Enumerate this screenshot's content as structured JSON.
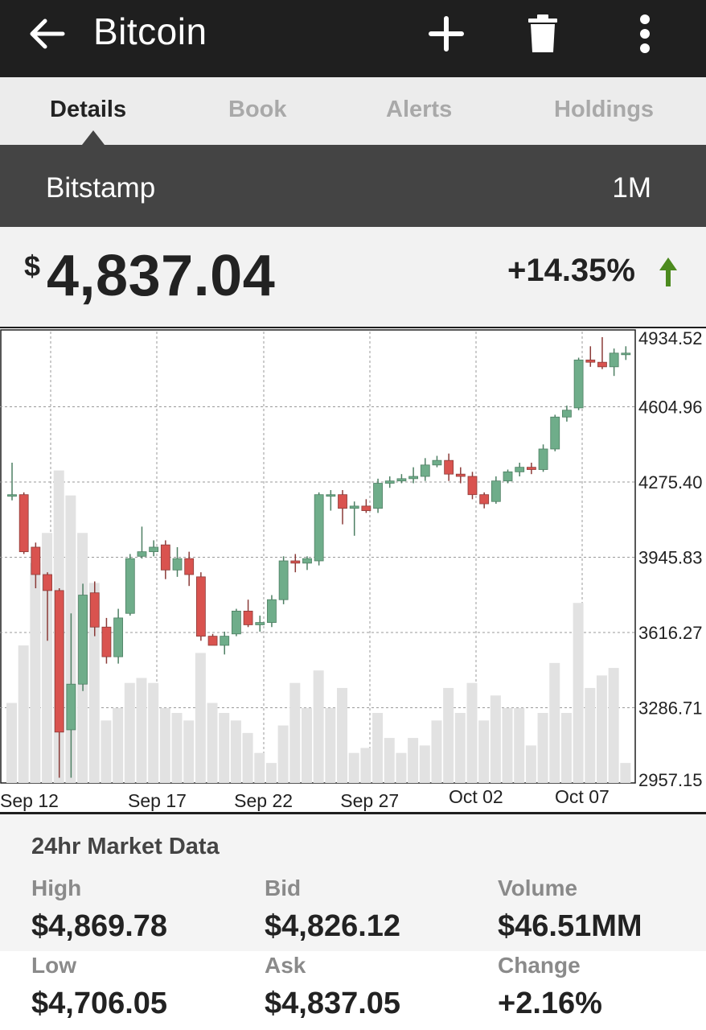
{
  "appbar": {
    "title": "Bitcoin",
    "icons": [
      "back-arrow-icon",
      "add-icon",
      "trash-icon",
      "more-vert-icon"
    ]
  },
  "tabs": [
    {
      "label": "Details",
      "active": true
    },
    {
      "label": "Book",
      "active": false
    },
    {
      "label": "Alerts",
      "active": false
    },
    {
      "label": "Holdings",
      "active": false
    }
  ],
  "exchange_bar": {
    "exchange": "Bitstamp",
    "range": "1M"
  },
  "price": {
    "currency_symbol": "$",
    "value": "4,837.04",
    "change": "+14.35%",
    "trend": "up",
    "trend_color": "#4c8a1e"
  },
  "chart_data": {
    "type": "candlestick",
    "y_axis_labels": [
      "4934.52",
      "4604.96",
      "4275.40",
      "3945.83",
      "3616.27",
      "3286.71",
      "2957.15"
    ],
    "ylim": [
      2957.15,
      4934.52
    ],
    "x_tick_labels": [
      "Sep 12",
      "Sep 17",
      "Sep 22",
      "Sep 27",
      "Oct 02",
      "Oct 07"
    ],
    "grid": true,
    "colors": {
      "up": "#6fad8a",
      "down": "#d9534f",
      "volume": "#e2e2e2"
    },
    "candles": [
      {
        "date": "Sep 11",
        "o": 4215,
        "h": 4360,
        "l": 4195,
        "c": 4220,
        "vol": 0.32
      },
      {
        "date": "Sep 12",
        "o": 4220,
        "h": 4230,
        "l": 3960,
        "c": 3970,
        "vol": 0.55
      },
      {
        "date": "Sep 13",
        "o": 3990,
        "h": 4010,
        "l": 3810,
        "c": 3870,
        "vol": 0.88
      },
      {
        "date": "Sep 14",
        "o": 3870,
        "h": 3880,
        "l": 3580,
        "c": 3800,
        "vol": 1.0
      },
      {
        "date": "Sep 15",
        "o": 3800,
        "h": 3810,
        "l": 2980,
        "c": 3180,
        "vol": 1.25
      },
      {
        "date": "Sep 16",
        "o": 3190,
        "h": 3700,
        "l": 2980,
        "c": 3390,
        "vol": 1.15
      },
      {
        "date": "Sep 17",
        "o": 3390,
        "h": 3830,
        "l": 3360,
        "c": 3780,
        "vol": 1.0
      },
      {
        "date": "Sep 18",
        "o": 3790,
        "h": 3840,
        "l": 3600,
        "c": 3640,
        "vol": 0.8
      },
      {
        "date": "Sep 19",
        "o": 3640,
        "h": 3680,
        "l": 3480,
        "c": 3510,
        "vol": 0.25
      },
      {
        "date": "Sep 20",
        "o": 3510,
        "h": 3720,
        "l": 3480,
        "c": 3680,
        "vol": 0.3
      },
      {
        "date": "Sep 21",
        "o": 3700,
        "h": 3960,
        "l": 3690,
        "c": 3940,
        "vol": 0.4
      },
      {
        "date": "Sep 22",
        "o": 3950,
        "h": 4080,
        "l": 3940,
        "c": 3970,
        "vol": 0.42
      },
      {
        "date": "Sep 23",
        "o": 3970,
        "h": 4020,
        "l": 3950,
        "c": 3990,
        "vol": 0.4
      },
      {
        "date": "Sep 24",
        "o": 4000,
        "h": 4020,
        "l": 3850,
        "c": 3890,
        "vol": 0.3
      },
      {
        "date": "Sep 25",
        "o": 3890,
        "h": 3990,
        "l": 3860,
        "c": 3940,
        "vol": 0.28
      },
      {
        "date": "Sep 26",
        "o": 3940,
        "h": 3970,
        "l": 3820,
        "c": 3870,
        "vol": 0.25
      },
      {
        "date": "Sep 27",
        "o": 3860,
        "h": 3880,
        "l": 3580,
        "c": 3600,
        "vol": 0.52
      },
      {
        "date": "Sep 28",
        "o": 3600,
        "h": 3610,
        "l": 3560,
        "c": 3560,
        "vol": 0.32
      },
      {
        "date": "Sep 29",
        "o": 3560,
        "h": 3620,
        "l": 3520,
        "c": 3600,
        "vol": 0.28
      },
      {
        "date": "Sep 30",
        "o": 3610,
        "h": 3720,
        "l": 3600,
        "c": 3710,
        "vol": 0.25
      },
      {
        "date": "Oct 01",
        "o": 3710,
        "h": 3760,
        "l": 3640,
        "c": 3650,
        "vol": 0.2
      },
      {
        "date": "Oct 02",
        "o": 3650,
        "h": 3690,
        "l": 3620,
        "c": 3660,
        "vol": 0.12
      },
      {
        "date": "Oct 03",
        "o": 3660,
        "h": 3780,
        "l": 3640,
        "c": 3760,
        "vol": 0.08
      },
      {
        "date": "Oct 04",
        "o": 3760,
        "h": 3950,
        "l": 3740,
        "c": 3930,
        "vol": 0.23
      },
      {
        "date": "Oct 05",
        "o": 3930,
        "h": 3960,
        "l": 3880,
        "c": 3920,
        "vol": 0.4
      },
      {
        "date": "Oct 06",
        "o": 3920,
        "h": 3950,
        "l": 3890,
        "c": 3940,
        "vol": 0.3
      },
      {
        "date": "Oct 07",
        "o": 3930,
        "h": 4230,
        "l": 3910,
        "c": 4220,
        "vol": 0.45
      },
      {
        "date": "Oct 08",
        "o": 4220,
        "h": 4240,
        "l": 4150,
        "c": 4220,
        "vol": 0.3
      },
      {
        "date": "Oct 09",
        "o": 4220,
        "h": 4240,
        "l": 4090,
        "c": 4160,
        "vol": 0.38
      },
      {
        "date": "Oct 10",
        "o": 4160,
        "h": 4190,
        "l": 4040,
        "c": 4170,
        "vol": 0.12
      },
      {
        "date": "Oct 11",
        "o": 4170,
        "h": 4200,
        "l": 4140,
        "c": 4150,
        "vol": 0.14
      },
      {
        "date": "Oct 12",
        "o": 4160,
        "h": 4290,
        "l": 4140,
        "c": 4270,
        "vol": 0.28
      },
      {
        "date": "Oct 13",
        "o": 4270,
        "h": 4300,
        "l": 4250,
        "c": 4280,
        "vol": 0.18
      },
      {
        "date": "Oct 14",
        "o": 4280,
        "h": 4310,
        "l": 4270,
        "c": 4290,
        "vol": 0.12
      },
      {
        "date": "Oct 15",
        "o": 4290,
        "h": 4340,
        "l": 4270,
        "c": 4300,
        "vol": 0.18
      },
      {
        "date": "Oct 16",
        "o": 4300,
        "h": 4380,
        "l": 4280,
        "c": 4350,
        "vol": 0.15
      },
      {
        "date": "Oct 17",
        "o": 4350,
        "h": 4390,
        "l": 4340,
        "c": 4370,
        "vol": 0.25
      },
      {
        "date": "Oct 18",
        "o": 4370,
        "h": 4400,
        "l": 4280,
        "c": 4310,
        "vol": 0.38
      },
      {
        "date": "Oct 19",
        "o": 4310,
        "h": 4340,
        "l": 4270,
        "c": 4300,
        "vol": 0.28
      },
      {
        "date": "Oct 20",
        "o": 4300,
        "h": 4320,
        "l": 4200,
        "c": 4220,
        "vol": 0.4
      },
      {
        "date": "Oct 21",
        "o": 4220,
        "h": 4230,
        "l": 4160,
        "c": 4180,
        "vol": 0.25
      },
      {
        "date": "Oct 22",
        "o": 4190,
        "h": 4300,
        "l": 4180,
        "c": 4280,
        "vol": 0.35
      },
      {
        "date": "Oct 23",
        "o": 4280,
        "h": 4330,
        "l": 4270,
        "c": 4320,
        "vol": 0.3
      },
      {
        "date": "Oct 24",
        "o": 4320,
        "h": 4360,
        "l": 4300,
        "c": 4340,
        "vol": 0.3
      },
      {
        "date": "Oct 25",
        "o": 4340,
        "h": 4360,
        "l": 4310,
        "c": 4330,
        "vol": 0.15
      },
      {
        "date": "Oct 26",
        "o": 4330,
        "h": 4440,
        "l": 4320,
        "c": 4420,
        "vol": 0.28
      },
      {
        "date": "Oct 27",
        "o": 4420,
        "h": 4570,
        "l": 4410,
        "c": 4560,
        "vol": 0.48
      },
      {
        "date": "Oct 28",
        "o": 4560,
        "h": 4610,
        "l": 4540,
        "c": 4590,
        "vol": 0.28
      },
      {
        "date": "Oct 29",
        "o": 4600,
        "h": 4820,
        "l": 4590,
        "c": 4810,
        "vol": 0.72
      },
      {
        "date": "Oct 30",
        "o": 4810,
        "h": 4870,
        "l": 4780,
        "c": 4800,
        "vol": 0.38
      },
      {
        "date": "Oct 31",
        "o": 4800,
        "h": 4910,
        "l": 4770,
        "c": 4780,
        "vol": 0.43
      },
      {
        "date": "Nov 01",
        "o": 4780,
        "h": 4860,
        "l": 4740,
        "c": 4840,
        "vol": 0.46
      },
      {
        "date": "Nov 02",
        "o": 4840,
        "h": 4870,
        "l": 4810,
        "c": 4840,
        "vol": 0.08
      }
    ]
  },
  "market_data": {
    "heading": "24hr Market Data",
    "stats": [
      {
        "label": "High",
        "value": "$4,869.78"
      },
      {
        "label": "Bid",
        "value": "$4,826.12"
      },
      {
        "label": "Volume",
        "value": "$46.51MM"
      },
      {
        "label": "Low",
        "value": "$4,706.05"
      },
      {
        "label": "Ask",
        "value": "$4,837.05"
      },
      {
        "label": "Change",
        "value": "+2.16%"
      }
    ]
  }
}
